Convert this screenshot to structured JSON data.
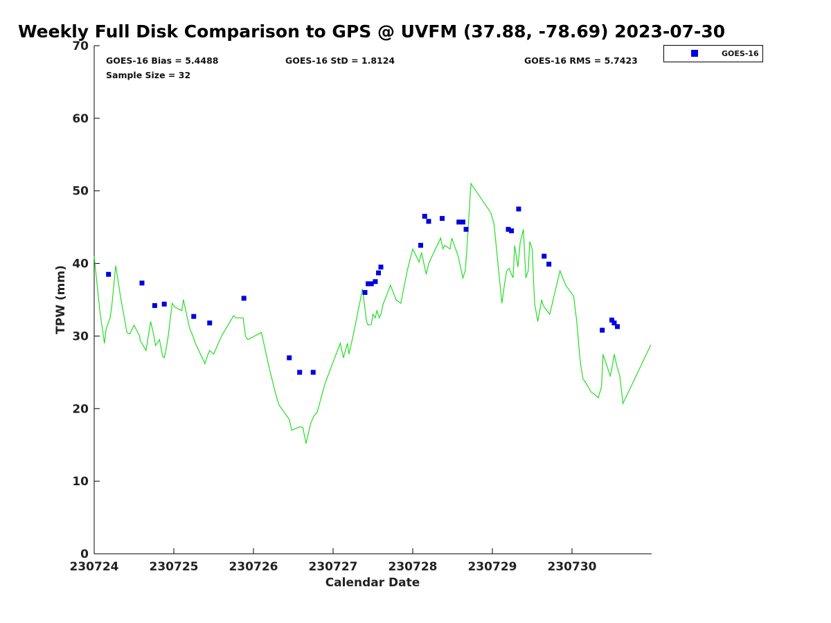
{
  "chart_data": {
    "type": "scatter",
    "title": "Weekly Full Disk Comparison to GPS @ UVFM (37.88, -78.69) 2023-07-30",
    "xlabel": "Calendar Date",
    "ylabel": "TPW (mm)",
    "xlim": [
      0,
      7
    ],
    "ylim": [
      0,
      70
    ],
    "y_ticks": [
      0,
      10,
      20,
      30,
      40,
      50,
      60,
      70
    ],
    "x_ticks": [
      {
        "value": 0,
        "label": "230724"
      },
      {
        "value": 1,
        "label": "230725"
      },
      {
        "value": 2,
        "label": "230726"
      },
      {
        "value": 3,
        "label": "230727"
      },
      {
        "value": 4,
        "label": "230728"
      },
      {
        "value": 5,
        "label": "230729"
      },
      {
        "value": 6,
        "label": "230730"
      }
    ],
    "stats": {
      "bias": "GOES-16 Bias = 5.4488",
      "std": "GOES-16 StD = 1.8124",
      "rms": "GOES-16 RMS = 5.7423",
      "sample": "Sample Size = 32"
    },
    "legend": {
      "label": "GOES-16",
      "color": "#0000dd",
      "position": "top-right outside"
    },
    "gps_line": {
      "color": "#22dd22",
      "x": [
        -0.02,
        0.07,
        0.13,
        0.15,
        0.2,
        0.22,
        0.27,
        0.33,
        0.41,
        0.45,
        0.5,
        0.57,
        0.58,
        0.6,
        0.65,
        0.71,
        0.75,
        0.77,
        0.82,
        0.86,
        0.88,
        0.9,
        0.93,
        0.98,
        1.01,
        1.1,
        1.12,
        1.2,
        1.24,
        1.27,
        1.39,
        1.43,
        1.45,
        1.5,
        1.6,
        1.75,
        1.78,
        1.87,
        1.9,
        1.93,
        2.1,
        2.2,
        2.28,
        2.32,
        2.45,
        2.48,
        2.52,
        2.59,
        2.62,
        2.66,
        2.72,
        2.76,
        2.8,
        2.9,
        3.09,
        3.13,
        3.18,
        3.2,
        3.25,
        3.37,
        3.42,
        3.44,
        3.48,
        3.5,
        3.53,
        3.55,
        3.58,
        3.6,
        3.63,
        3.65,
        3.72,
        3.79,
        3.85,
        3.93,
        4.0,
        4.08,
        4.11,
        4.14,
        4.17,
        4.2,
        4.35,
        4.38,
        4.4,
        4.47,
        4.49,
        4.57,
        4.63,
        4.66,
        4.68,
        4.73,
        4.98,
        5.02,
        5.12,
        5.15,
        5.18,
        5.21,
        5.24,
        5.26,
        5.28,
        5.32,
        5.35,
        5.39,
        5.42,
        5.45,
        5.47,
        5.5,
        5.53,
        5.57,
        5.62,
        5.63,
        5.65,
        5.72,
        5.85,
        5.92,
        6.02,
        6.06,
        6.09,
        6.11,
        6.14,
        6.16,
        6.24,
        6.28,
        6.33,
        6.37,
        6.39,
        6.48,
        6.5,
        6.53,
        6.56,
        6.6,
        6.64,
        6.99
      ],
      "y": [
        41.0,
        33.5,
        29.0,
        31.0,
        32.5,
        34.0,
        39.7,
        35.5,
        30.5,
        30.3,
        31.5,
        30.0,
        29.3,
        29.0,
        28.0,
        32.0,
        30.0,
        28.7,
        29.5,
        27.2,
        27.0,
        28.0,
        30.0,
        34.5,
        34.0,
        33.5,
        35.0,
        31.0,
        30.0,
        29.0,
        26.2,
        27.5,
        28.0,
        27.5,
        30.0,
        32.8,
        32.5,
        32.5,
        30.0,
        29.5,
        30.5,
        25.5,
        22.0,
        20.5,
        18.5,
        17.0,
        17.2,
        17.5,
        17.4,
        15.2,
        18.0,
        19.0,
        19.5,
        23.5,
        29.0,
        27.0,
        29.0,
        27.5,
        30.0,
        36.5,
        32.0,
        31.5,
        31.6,
        33.0,
        32.5,
        33.5,
        32.5,
        33.0,
        34.5,
        35.0,
        37.0,
        35.0,
        34.5,
        39.0,
        42.0,
        40.2,
        41.5,
        40.0,
        38.5,
        40.0,
        43.5,
        42.0,
        42.5,
        42.0,
        43.5,
        41.0,
        38.0,
        39.0,
        42.0,
        51.0,
        47.0,
        45.5,
        34.5,
        37.0,
        39.0,
        39.3,
        38.5,
        38.0,
        42.5,
        39.5,
        43.0,
        44.7,
        38.0,
        39.0,
        43.0,
        42.0,
        34.5,
        32.0,
        35.0,
        34.5,
        34.0,
        33.0,
        39.0,
        37.0,
        35.5,
        32.0,
        28.0,
        26.0,
        24.0,
        23.8,
        22.3,
        22.0,
        21.5,
        23.0,
        27.5,
        24.5,
        25.5,
        27.5,
        26.0,
        24.5,
        20.7,
        28.8
      ]
    },
    "series": [
      {
        "name": "GOES-16",
        "color": "#0000dd",
        "x": [
          0.18,
          0.6,
          0.76,
          0.88,
          1.25,
          1.45,
          1.88,
          2.45,
          2.58,
          2.75,
          3.4,
          3.44,
          3.48,
          3.53,
          3.57,
          3.6,
          4.1,
          4.15,
          4.2,
          4.37,
          4.58,
          4.63,
          4.67,
          5.2,
          5.24,
          5.33,
          5.65,
          5.71,
          6.38,
          6.5,
          6.53,
          6.57
        ],
        "y": [
          38.5,
          37.3,
          34.2,
          34.4,
          32.7,
          31.8,
          35.2,
          27.0,
          25.0,
          25.0,
          36.0,
          37.2,
          37.2,
          37.5,
          38.7,
          39.5,
          42.5,
          46.5,
          45.8,
          46.2,
          45.7,
          45.7,
          44.7,
          44.7,
          44.5,
          47.5,
          41.0,
          39.9,
          30.8,
          32.2,
          31.8,
          31.3
        ]
      }
    ]
  }
}
